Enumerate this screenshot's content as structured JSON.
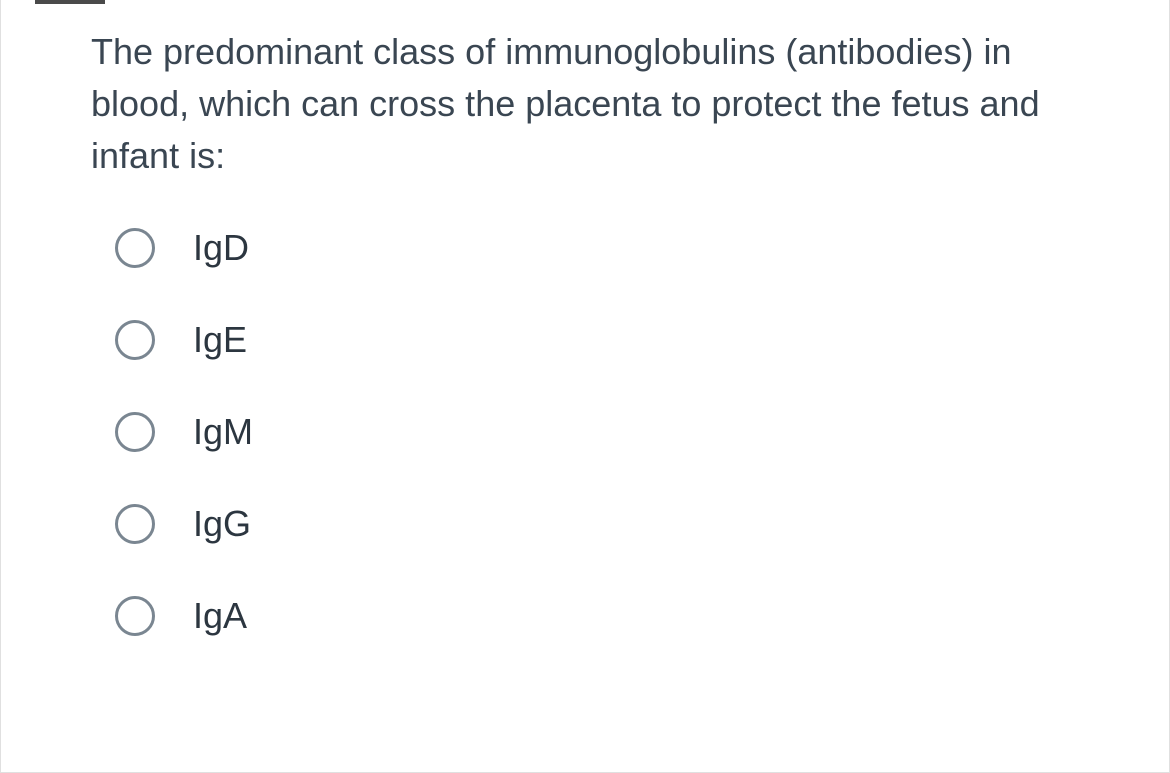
{
  "question": {
    "text": "The predominant class of immunoglobulins (antibodies) in blood, which can cross the placenta to protect the fetus and infant is:",
    "text_color": "#3a4652",
    "font_size": 36
  },
  "options": [
    {
      "label": "IgD",
      "selected": false
    },
    {
      "label": "IgE",
      "selected": false
    },
    {
      "label": "IgM",
      "selected": false
    },
    {
      "label": "IgG",
      "selected": false
    },
    {
      "label": "IgA",
      "selected": false
    }
  ],
  "styling": {
    "background_color": "#ffffff",
    "border_color": "#e0e0e0",
    "radio_border_color": "#7a8691",
    "radio_size": 40,
    "option_text_color": "#2c3640",
    "option_font_size": 36,
    "top_marker_color": "#4a4a4a"
  }
}
